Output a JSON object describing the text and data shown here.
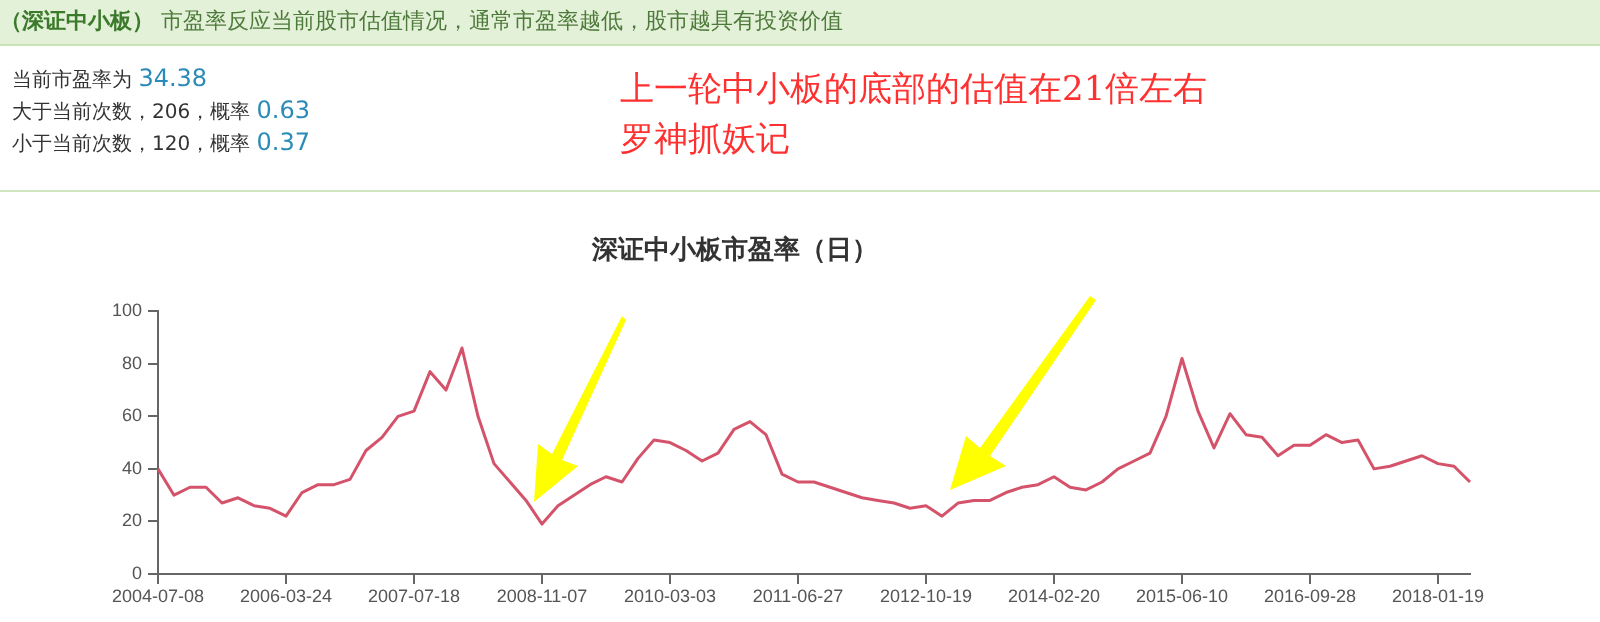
{
  "chart_data": {
    "type": "line",
    "title": "深证中小板市盈率（日）",
    "annotations": [
      "（深证中小板）",
      "市盈率反应当前股市估值情况，通常市盈率越低，股市越具有投资价值",
      "当前市盈率为 34.38",
      "大于当前次数，206，概率 0.63",
      "小于当前次数，120，概率 0.37",
      "上一轮中小板的底部的估值在21倍左右",
      "罗神抓妖记"
    ],
    "categories": [
      "2004-07-08",
      null,
      null,
      null,
      null,
      null,
      null,
      null,
      "2006-03-24",
      null,
      null,
      null,
      null,
      null,
      null,
      null,
      "2007-07-18",
      null,
      null,
      null,
      null,
      null,
      null,
      null,
      "2008-11-07",
      null,
      null,
      null,
      null,
      null,
      null,
      null,
      "2010-03-03",
      null,
      null,
      null,
      null,
      null,
      null,
      null,
      "2011-06-27",
      null,
      null,
      null,
      null,
      null,
      null,
      null,
      "2012-10-19",
      null,
      null,
      null,
      null,
      null,
      null,
      null,
      "2014-02-20",
      null,
      null,
      null,
      null,
      null,
      null,
      null,
      "2015-06-10",
      null,
      null,
      null,
      null,
      null,
      null,
      null,
      "2016-09-28",
      null,
      null,
      null,
      null,
      null,
      null,
      null,
      "2018-01-19",
      null,
      null
    ],
    "series": [
      {
        "color": "#d4536a",
        "values": [
          40,
          30,
          33,
          33,
          27,
          29,
          26,
          25,
          22,
          31,
          34,
          34,
          36,
          47,
          52,
          60,
          62,
          77,
          70,
          86,
          60,
          42,
          35,
          28,
          19,
          26,
          30,
          34,
          37,
          35,
          44,
          51,
          50,
          47,
          43,
          46,
          55,
          58,
          53,
          38,
          35,
          35,
          33,
          31,
          29,
          28,
          27,
          25,
          26,
          22,
          27,
          28,
          28,
          31,
          33,
          34,
          37,
          33,
          32,
          35,
          40,
          43,
          46,
          60,
          82,
          62,
          48,
          61,
          53,
          52,
          45,
          49,
          49,
          53,
          50,
          51,
          40,
          41,
          43,
          45,
          42,
          41,
          35
        ]
      }
    ],
    "ylim": [
      0,
      100
    ],
    "yticks": [
      0,
      20,
      40,
      60,
      80,
      100
    ],
    "grid": false,
    "legend": false,
    "marker": "none",
    "line_style": "solid"
  }
}
